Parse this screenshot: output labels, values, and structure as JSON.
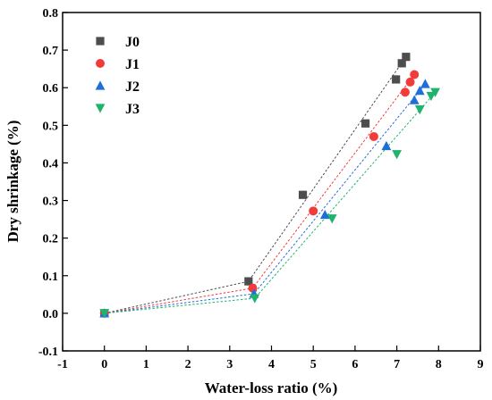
{
  "chart_data": {
    "type": "scatter",
    "xlabel": "Water-loss ratio (%)",
    "ylabel": "Dry shrinkage (%)",
    "xlim": [
      -1,
      9
    ],
    "ylim": [
      -0.1,
      0.8
    ],
    "xticks": [
      -1,
      0,
      1,
      2,
      3,
      4,
      5,
      6,
      7,
      8,
      9
    ],
    "yticks": [
      -0.1,
      0.0,
      0.1,
      0.2,
      0.3,
      0.4,
      0.5,
      0.6,
      0.7,
      0.8
    ],
    "xtick_labels": [
      "-1",
      "0",
      "1",
      "2",
      "3",
      "4",
      "5",
      "6",
      "7",
      "8",
      "9"
    ],
    "ytick_labels": [
      "-0.1",
      "0.0",
      "0.1",
      "0.2",
      "0.3",
      "0.4",
      "0.5",
      "0.6",
      "0.7",
      "0.8"
    ],
    "grid": false,
    "legend_position": "top-left",
    "series": [
      {
        "name": "J0",
        "marker": "square",
        "color": "#4d4d4d",
        "points": [
          [
            0,
            0.0
          ],
          [
            3.45,
            0.085
          ],
          [
            4.75,
            0.315
          ],
          [
            6.25,
            0.505
          ],
          [
            6.98,
            0.622
          ],
          [
            7.12,
            0.665
          ],
          [
            7.22,
            0.682
          ]
        ],
        "fit": [
          [
            0,
            0.0
          ],
          [
            3.45,
            0.085
          ],
          [
            7.22,
            0.682
          ]
        ]
      },
      {
        "name": "J1",
        "marker": "circle",
        "color": "#f23b3b",
        "points": [
          [
            0,
            0.0
          ],
          [
            3.55,
            0.067
          ],
          [
            5.0,
            0.272
          ],
          [
            6.45,
            0.47
          ],
          [
            7.2,
            0.588
          ],
          [
            7.32,
            0.615
          ],
          [
            7.42,
            0.635
          ]
        ],
        "fit": [
          [
            0,
            0.0
          ],
          [
            3.55,
            0.067
          ],
          [
            7.42,
            0.635
          ]
        ]
      },
      {
        "name": "J2",
        "marker": "triangle-up",
        "color": "#1f6fdb",
        "points": [
          [
            0,
            0.0
          ],
          [
            3.58,
            0.052
          ],
          [
            5.28,
            0.262
          ],
          [
            6.75,
            0.445
          ],
          [
            7.42,
            0.567
          ],
          [
            7.55,
            0.592
          ],
          [
            7.68,
            0.61
          ]
        ],
        "fit": [
          [
            0,
            0.0
          ],
          [
            3.58,
            0.052
          ],
          [
            7.68,
            0.61
          ]
        ]
      },
      {
        "name": "J3",
        "marker": "triangle-down",
        "color": "#1fb36b",
        "points": [
          [
            0,
            0.0
          ],
          [
            3.6,
            0.04
          ],
          [
            5.45,
            0.252
          ],
          [
            7.0,
            0.423
          ],
          [
            7.55,
            0.542
          ],
          [
            7.82,
            0.578
          ],
          [
            7.92,
            0.588
          ]
        ],
        "fit": [
          [
            0,
            0.0
          ],
          [
            3.6,
            0.04
          ],
          [
            7.92,
            0.588
          ]
        ]
      }
    ]
  }
}
